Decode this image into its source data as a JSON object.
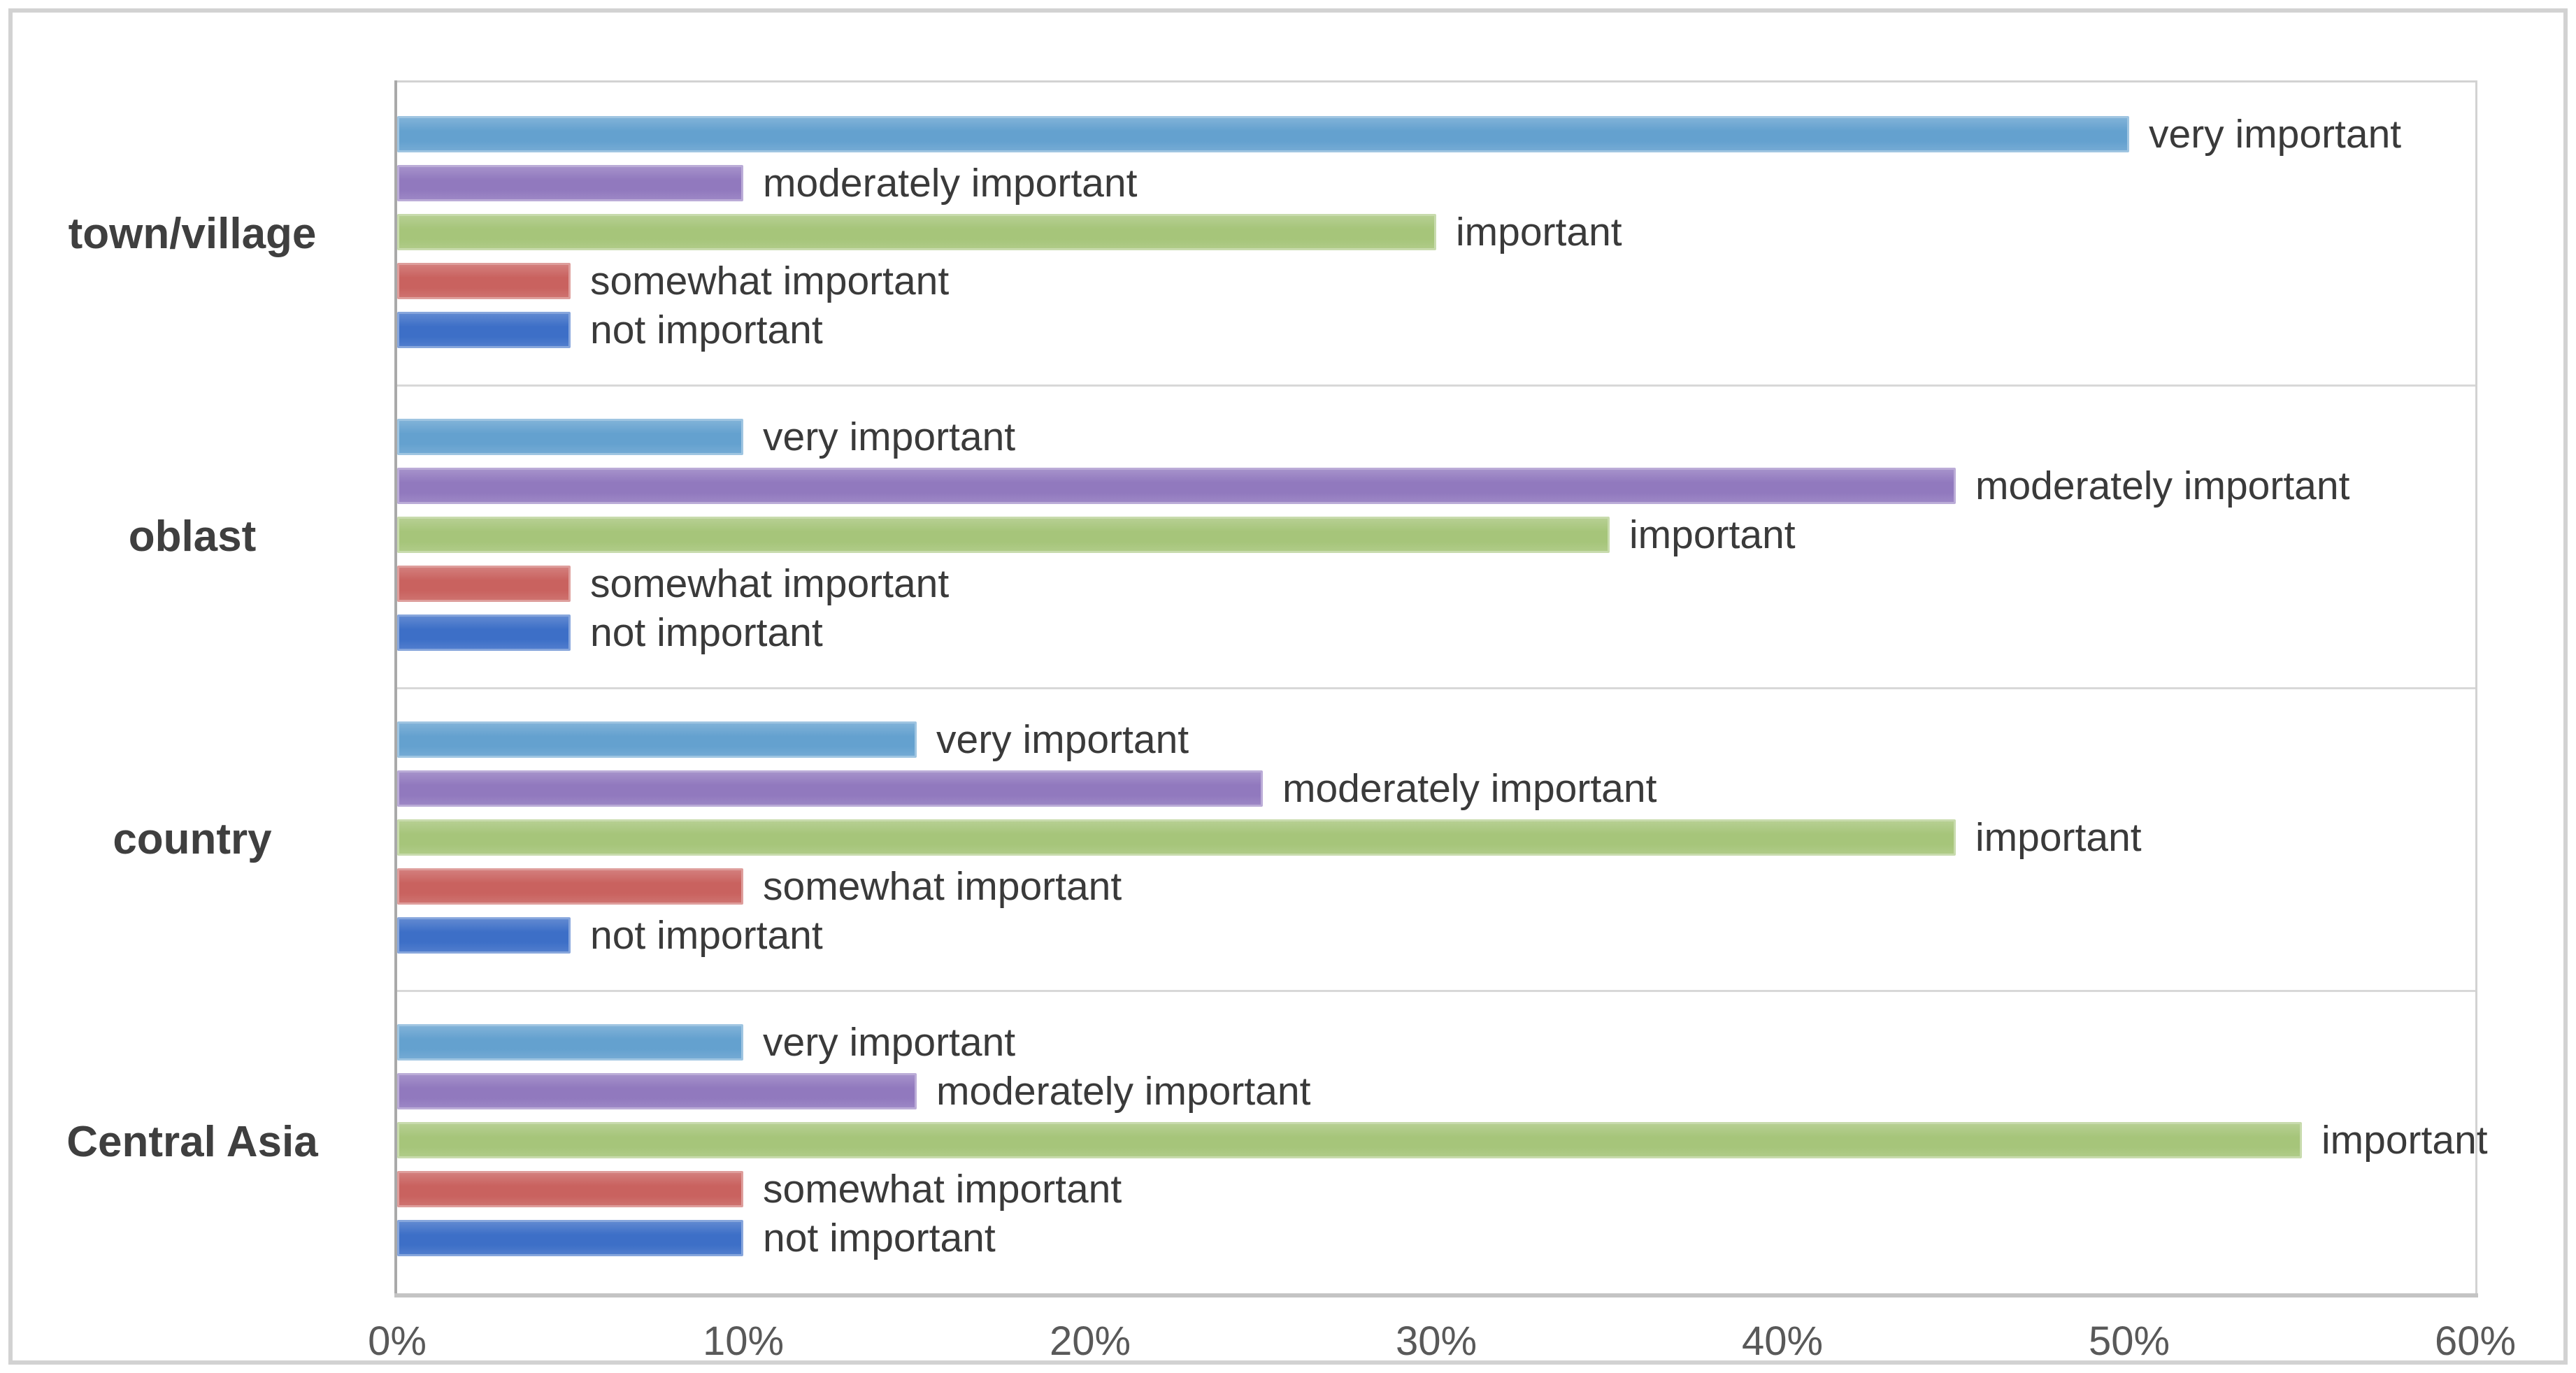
{
  "figure": {
    "background": "#ffffff",
    "outer_border_color": "#d2d2d2"
  },
  "chart_data": {
    "type": "bar",
    "orientation": "horizontal",
    "title": "",
    "xlabel": "",
    "ylabel": "",
    "xlim": [
      0,
      60
    ],
    "x_tick_labels": [
      "0%",
      "10%",
      "20%",
      "30%",
      "40%",
      "50%",
      "60%"
    ],
    "grid": false,
    "legend_position": "none-labels-inline-next-to-bars",
    "categories": [
      "town/village",
      "oblast",
      "country",
      "Central Asia"
    ],
    "series": [
      {
        "name": "very important",
        "color": "#64a1cf",
        "values": [
          50,
          10,
          15,
          10
        ]
      },
      {
        "name": "moderately important",
        "color": "#9179be",
        "values": [
          10,
          45,
          25,
          15
        ]
      },
      {
        "name": "important",
        "color": "#a6c57a",
        "values": [
          30,
          35,
          45,
          55
        ]
      },
      {
        "name": "somewhat important",
        "color": "#c9625f",
        "values": [
          5,
          5,
          10,
          10
        ]
      },
      {
        "name": "not important",
        "color": "#3d6fc7",
        "values": [
          5,
          5,
          5,
          10
        ]
      }
    ],
    "colors": {
      "bar_label_text": "#3a3a3a",
      "tick_label_text": "#595959",
      "category_label_text": "#3f3f3f",
      "axis_line": "#a9a9a9",
      "bottom_axis_line": "#c4c4c4",
      "plot_border": "#d2d2d2",
      "band_separator": "#d8d8d8"
    }
  }
}
